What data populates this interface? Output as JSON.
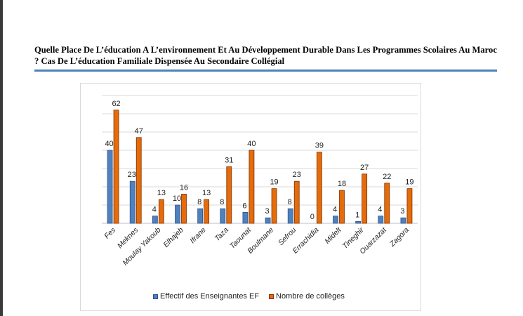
{
  "page": {
    "title": "Quelle Place De L’éducation A L’environnement Et Au Développement Durable Dans Les Programmes Scolaires Au Maroc ? Cas De L’éducation Familiale Dispensée Au Secondaire Collégial"
  },
  "chart_data": {
    "type": "bar",
    "categories": [
      "Fes",
      "Meknes",
      "Moulay Yakoub",
      "Elhajeb",
      "Ifrane",
      "Taza",
      "Taounat",
      "Boulmane",
      "Sefrou",
      "Errachidia",
      "Midelt",
      "Tineghir",
      "Ouarzazat",
      "Zagora"
    ],
    "series": [
      {
        "name": "Effectif des Enseignantes EF",
        "values": [
          40,
          23,
          4,
          10,
          8,
          8,
          6,
          3,
          8,
          0,
          4,
          1,
          4,
          3
        ],
        "color": "#4f81bd"
      },
      {
        "name": "Nombre de collèges",
        "values": [
          62,
          47,
          13,
          16,
          13,
          31,
          40,
          19,
          23,
          39,
          18,
          27,
          22,
          19
        ],
        "color": "#e46c0a"
      }
    ],
    "ylim": [
      0,
      70
    ],
    "grid": true,
    "legend_position": "bottom"
  }
}
